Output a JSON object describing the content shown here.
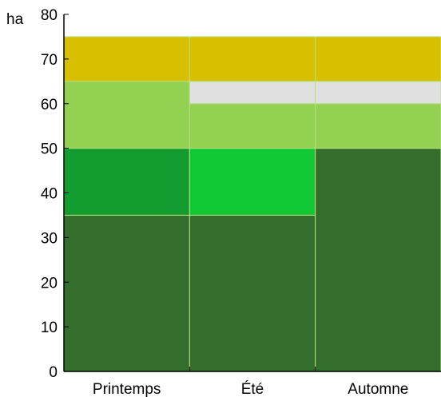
{
  "chart_data": {
    "type": "bar",
    "stacked": true,
    "ylabel": "ha",
    "ylim": [
      0,
      80
    ],
    "yticks": [
      0,
      10,
      20,
      30,
      40,
      50,
      60,
      70,
      80
    ],
    "categories": [
      "Printemps",
      "Été",
      "Automne"
    ],
    "grid": false,
    "series": [
      {
        "color": "#336e2c",
        "values": [
          35,
          35,
          50
        ]
      },
      {
        "color": "#139c30",
        "values": [
          15,
          0,
          0
        ]
      },
      {
        "color": "#11c935",
        "values": [
          0,
          15,
          0
        ]
      },
      {
        "color": "#93d152",
        "values": [
          15,
          10,
          10
        ]
      },
      {
        "color": "#e0e0e0",
        "values": [
          0,
          5,
          5
        ]
      },
      {
        "color": "#d7c000",
        "values": [
          10,
          10,
          10
        ]
      }
    ]
  }
}
